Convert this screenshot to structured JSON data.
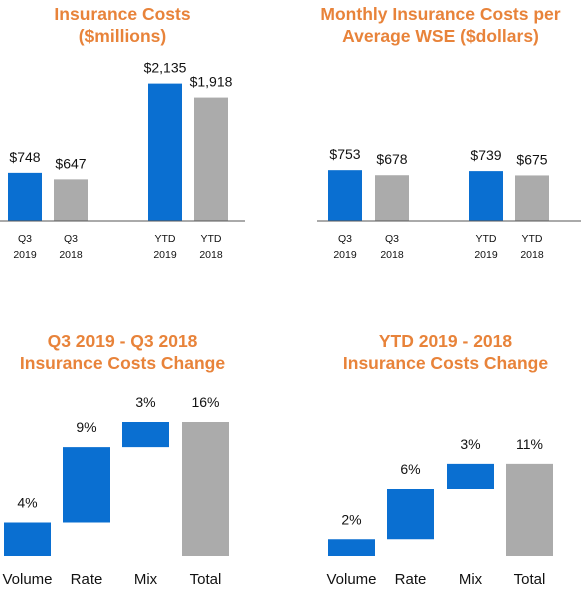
{
  "colors": {
    "blue": "#0A6FD1",
    "gray": "#ABABAB",
    "title": "#E8833A",
    "axis": "#555555"
  },
  "chart_data": [
    {
      "type": "bar",
      "title": [
        "Insurance Costs",
        "($millions)"
      ],
      "categories": [
        [
          "Q3",
          "2019"
        ],
        [
          "Q3",
          "2018"
        ],
        [
          "YTD",
          "2019"
        ],
        [
          "YTD",
          "2018"
        ]
      ],
      "values": [
        748,
        647,
        2135,
        1918
      ],
      "value_labels": [
        "$748",
        "$647",
        "$2,135",
        "$1,918"
      ],
      "colors": [
        "blue",
        "gray",
        "blue",
        "gray"
      ],
      "ylim": [
        0,
        2300
      ]
    },
    {
      "type": "bar",
      "title": [
        "Monthly Insurance Costs per",
        "Average WSE ($dollars)"
      ],
      "categories": [
        [
          "Q3",
          "2019"
        ],
        [
          "Q3",
          "2018"
        ],
        [
          "YTD",
          "2019"
        ],
        [
          "YTD",
          "2018"
        ]
      ],
      "values": [
        753,
        678,
        739,
        675
      ],
      "value_labels": [
        "$753",
        "$678",
        "$739",
        "$675"
      ],
      "colors": [
        "blue",
        "gray",
        "blue",
        "gray"
      ],
      "ylim": [
        0,
        1600
      ]
    },
    {
      "type": "waterfall",
      "title": [
        "Q3 2019 - Q3 2018",
        "Insurance Costs Change"
      ],
      "categories": [
        "Volume",
        "Rate",
        "Mix",
        "Total"
      ],
      "values": [
        4,
        9,
        3,
        16
      ],
      "value_labels": [
        "4%",
        "9%",
        "3%",
        "16%"
      ],
      "ylim": [
        0,
        16
      ]
    },
    {
      "type": "waterfall",
      "title": [
        "YTD 2019 -  2018",
        "Insurance Costs Change"
      ],
      "categories": [
        "Volume",
        "Rate",
        "Mix",
        "Total"
      ],
      "values": [
        2,
        6,
        3,
        11
      ],
      "value_labels": [
        "2%",
        "6%",
        "3%",
        "11%"
      ],
      "ylim": [
        0,
        16
      ]
    }
  ]
}
